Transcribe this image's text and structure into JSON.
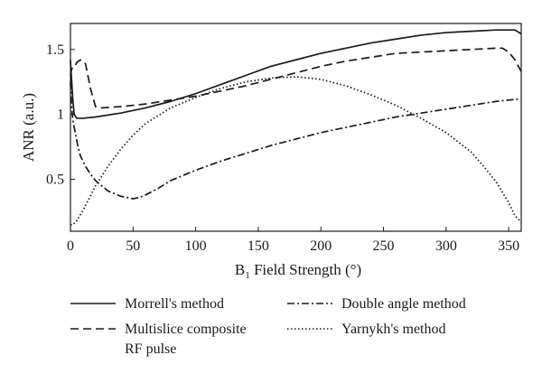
{
  "chart_data": {
    "type": "line",
    "xlabel_main": "B",
    "xlabel_sub": "1",
    "xlabel_rest": " Field Strength (°)",
    "ylabel": "ANR (a.u.)",
    "xlim": [
      0,
      360
    ],
    "ylim": [
      0.1,
      1.7
    ],
    "xticks": [
      0,
      50,
      100,
      150,
      200,
      250,
      300,
      350
    ],
    "xtick_labels": [
      "0",
      "50",
      "100",
      "150",
      "200",
      "250",
      "300",
      "350"
    ],
    "yticks": [
      0.5,
      1,
      1.5
    ],
    "ytick_labels": [
      "0.5",
      "1",
      "1.5"
    ],
    "grid": false,
    "legend_position": "bottom",
    "series": [
      {
        "name": "Morrell's method",
        "dash": "solid",
        "x": [
          0,
          1,
          2,
          3,
          5,
          10,
          20,
          40,
          60,
          80,
          100,
          120,
          140,
          160,
          180,
          200,
          220,
          240,
          260,
          280,
          300,
          320,
          340,
          355,
          360
        ],
        "y": [
          1.42,
          1.25,
          1.1,
          1.0,
          0.97,
          0.97,
          0.98,
          1.01,
          1.05,
          1.1,
          1.16,
          1.23,
          1.3,
          1.37,
          1.42,
          1.47,
          1.51,
          1.55,
          1.58,
          1.61,
          1.63,
          1.64,
          1.65,
          1.65,
          1.62
        ]
      },
      {
        "name": "Multislice composite RF pulse",
        "dash": "dashed",
        "x": [
          0,
          1,
          2,
          3,
          5,
          8,
          12,
          16,
          20,
          25,
          40,
          60,
          80,
          100,
          120,
          140,
          160,
          180,
          200,
          220,
          240,
          260,
          280,
          300,
          320,
          340,
          345,
          350,
          355,
          360
        ],
        "y": [
          1.3,
          1.35,
          1.36,
          1.36,
          1.4,
          1.42,
          1.39,
          1.2,
          1.06,
          1.05,
          1.06,
          1.08,
          1.11,
          1.14,
          1.18,
          1.22,
          1.27,
          1.32,
          1.37,
          1.41,
          1.44,
          1.47,
          1.48,
          1.49,
          1.5,
          1.51,
          1.51,
          1.48,
          1.42,
          1.33
        ]
      },
      {
        "name": "Double angle method",
        "dash": "dashdot",
        "x": [
          0,
          1,
          2,
          4,
          6,
          8,
          12,
          16,
          20,
          25,
          30,
          35,
          40,
          45,
          50,
          55,
          60,
          70,
          80,
          100,
          120,
          140,
          160,
          180,
          200,
          220,
          240,
          260,
          280,
          300,
          320,
          340,
          360
        ],
        "y": [
          1.25,
          1.05,
          0.95,
          0.85,
          0.75,
          0.68,
          0.6,
          0.54,
          0.49,
          0.45,
          0.41,
          0.39,
          0.37,
          0.36,
          0.35,
          0.36,
          0.38,
          0.43,
          0.49,
          0.57,
          0.64,
          0.7,
          0.76,
          0.81,
          0.86,
          0.9,
          0.94,
          0.98,
          1.01,
          1.04,
          1.07,
          1.1,
          1.12
        ]
      },
      {
        "name": "Yarnykh's method",
        "dash": "dotted",
        "x": [
          0,
          2,
          5,
          10,
          20,
          30,
          40,
          50,
          60,
          80,
          100,
          120,
          140,
          160,
          180,
          200,
          220,
          240,
          260,
          280,
          300,
          320,
          330,
          340,
          350,
          355,
          360
        ],
        "y": [
          0.15,
          0.15,
          0.18,
          0.26,
          0.45,
          0.6,
          0.73,
          0.84,
          0.93,
          1.05,
          1.13,
          1.2,
          1.25,
          1.28,
          1.29,
          1.27,
          1.22,
          1.15,
          1.07,
          0.97,
          0.86,
          0.71,
          0.6,
          0.48,
          0.32,
          0.22,
          0.17
        ]
      }
    ]
  }
}
